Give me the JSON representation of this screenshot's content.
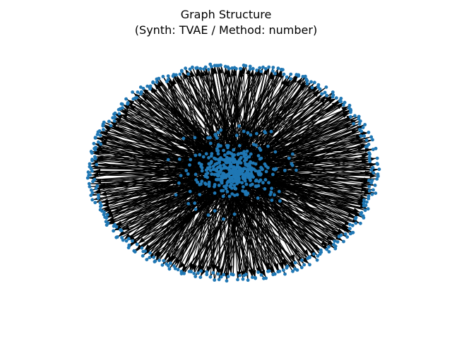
{
  "figure": {
    "title_line1": "Graph Structure",
    "title_line2": "(Synth: TVAE / Method: number)"
  },
  "graph": {
    "node_color": "#1f77b4",
    "edge_color": "#000000",
    "layout": "spring",
    "directed": true
  }
}
